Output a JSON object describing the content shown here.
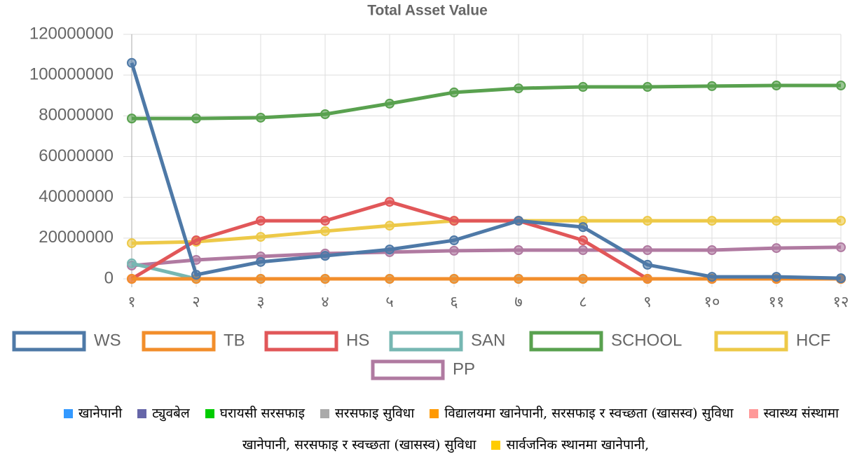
{
  "chart_data": {
    "type": "line",
    "title": "Total Asset Value",
    "categories": [
      "१",
      "२",
      "३",
      "४",
      "५",
      "६",
      "७",
      "८",
      "९",
      "१०",
      "११",
      "१२"
    ],
    "ylim": [
      0,
      120000000
    ],
    "yticks": [
      0,
      20000000,
      40000000,
      60000000,
      80000000,
      100000000,
      120000000
    ],
    "grid": true,
    "series": [
      {
        "name": "WS",
        "color": "#4e79a7",
        "values": [
          106000000,
          2000000,
          8300000,
          11300000,
          14400000,
          18900000,
          28500000,
          25400000,
          6900000,
          1000000,
          1000000,
          300000
        ]
      },
      {
        "name": "TB",
        "color": "#f28e2b",
        "values": [
          0,
          0,
          0,
          0,
          0,
          0,
          0,
          0,
          0,
          0,
          0,
          0
        ]
      },
      {
        "name": "HS",
        "color": "#e15759",
        "values": [
          0,
          18900000,
          28500000,
          28500000,
          37800000,
          28500000,
          28500000,
          18900000,
          0,
          0,
          0,
          0
        ]
      },
      {
        "name": "SAN",
        "color": "#76b7b2",
        "values": [
          7600000,
          0,
          0,
          0,
          0,
          0,
          0,
          0,
          0,
          0,
          0,
          0
        ]
      },
      {
        "name": "SCHOOL",
        "color": "#59a14f",
        "values": [
          78700000,
          78700000,
          79100000,
          80800000,
          86000000,
          91500000,
          93500000,
          94200000,
          94200000,
          94600000,
          94900000,
          94900000
        ]
      },
      {
        "name": "HCF",
        "color": "#edc948",
        "values": [
          17500000,
          18200000,
          20600000,
          23400000,
          26100000,
          28500000,
          28500000,
          28500000,
          28500000,
          28500000,
          28500000,
          28500000
        ]
      },
      {
        "name": "PP",
        "color": "#b07aa1",
        "values": [
          6500000,
          9300000,
          11000000,
          12400000,
          13100000,
          13800000,
          14100000,
          14100000,
          14100000,
          14100000,
          15100000,
          15500000
        ]
      }
    ]
  },
  "secondary_legend": [
    {
      "label": "खानेपानी",
      "color": "#3399ff"
    },
    {
      "label": "ट्युवबेल",
      "color": "#6666a8"
    },
    {
      "label": "घरायसी सरसफाइ",
      "color": "#00cc00"
    },
    {
      "label": "सरसफाइ सुविधा",
      "color": "#aaaaaa"
    },
    {
      "label": "विद्यालयमा खानेपानी, सरसफाइ र स्वच्छता (खासस्व) सुविधा",
      "color": "#ff9900"
    },
    {
      "label": "स्वास्थ्य संस्थामा खानेपानी, सरसफाइ र स्वच्छता (खासस्व) सुविधा",
      "color": "#ff9999"
    },
    {
      "label": "सार्वजनिक स्थानमा खानेपानी,",
      "color": "#ffcc00"
    }
  ]
}
